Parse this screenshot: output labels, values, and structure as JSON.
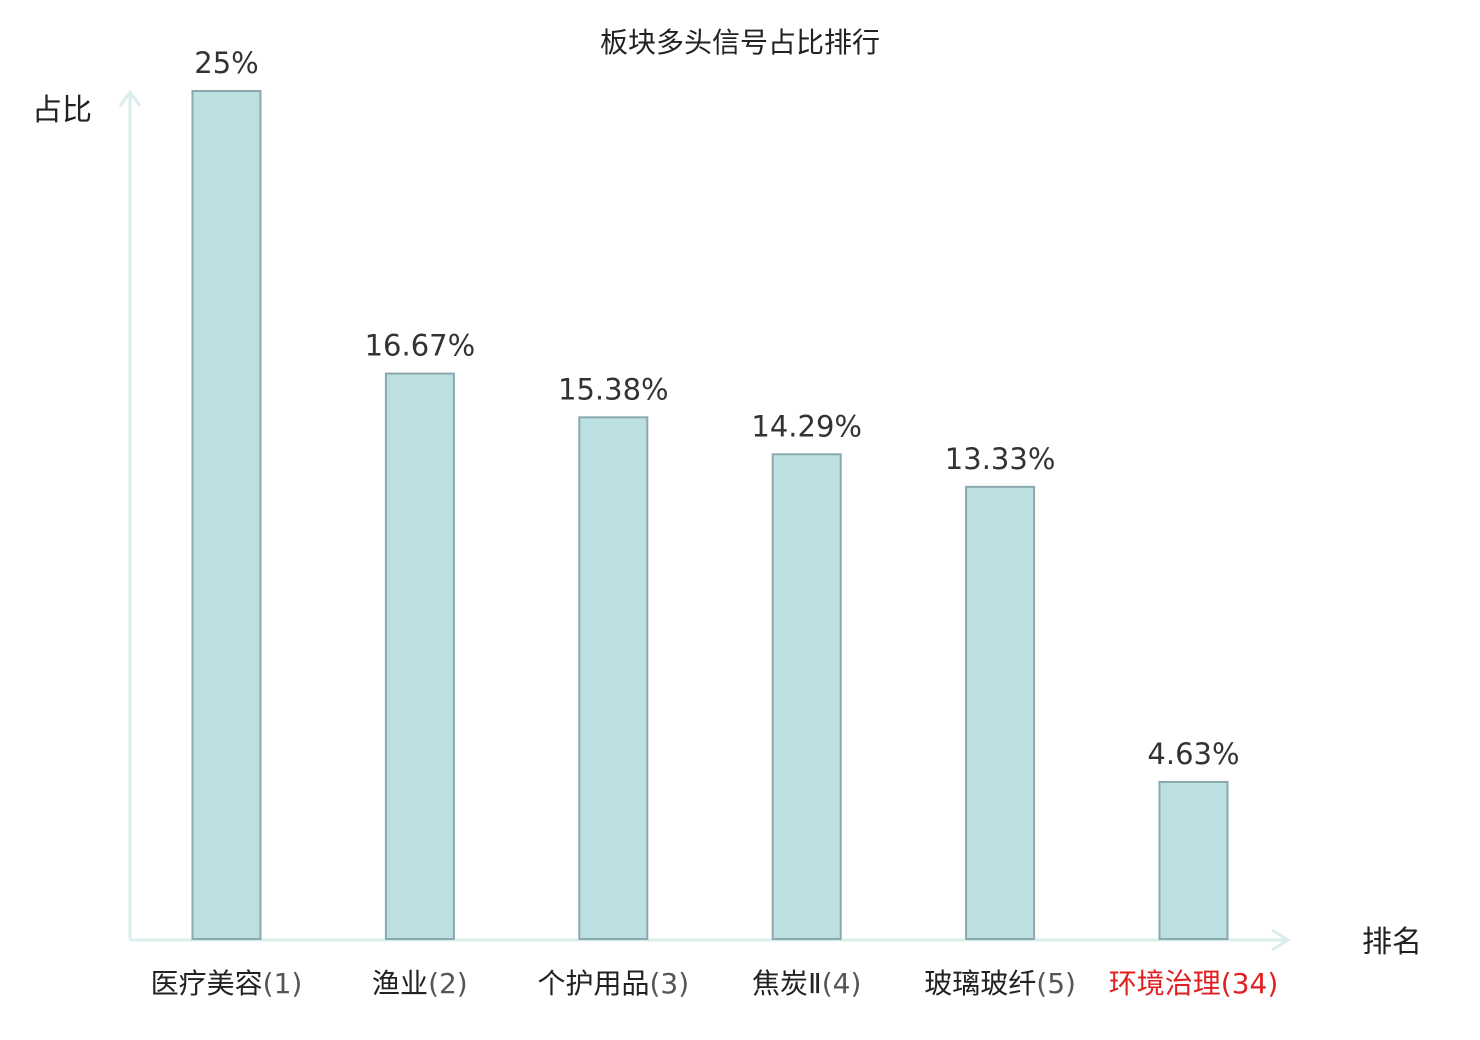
{
  "chart_data": {
    "type": "bar",
    "title": "板块多头信号占比排行",
    "xlabel": "排名",
    "ylabel": "占比",
    "categories": [
      {
        "name": "医疗美容",
        "rank": "(1)",
        "highlight": false
      },
      {
        "name": "渔业",
        "rank": "(2)",
        "highlight": false
      },
      {
        "name": "个护用品",
        "rank": "(3)",
        "highlight": false
      },
      {
        "name": "焦炭Ⅱ",
        "rank": "(4)",
        "highlight": false
      },
      {
        "name": "玻璃玻纤",
        "rank": "(5)",
        "highlight": false
      },
      {
        "name": "环境治理",
        "rank": "(34)",
        "highlight": true
      }
    ],
    "values": [
      25,
      16.67,
      15.38,
      14.29,
      13.33,
      4.63
    ],
    "value_labels": [
      "25%",
      "16.67%",
      "15.38%",
      "14.29%",
      "13.33%",
      "4.63%"
    ],
    "ylim": [
      0,
      25
    ],
    "grid": false,
    "legend": "none"
  },
  "colors": {
    "bar_fill": "#bce0e2",
    "bar_stroke": "#8aa9ad",
    "axis": "#d9efed",
    "text": "#222222",
    "value_label": "#333333",
    "highlight": "#e02020",
    "rank_text": "#555555"
  }
}
